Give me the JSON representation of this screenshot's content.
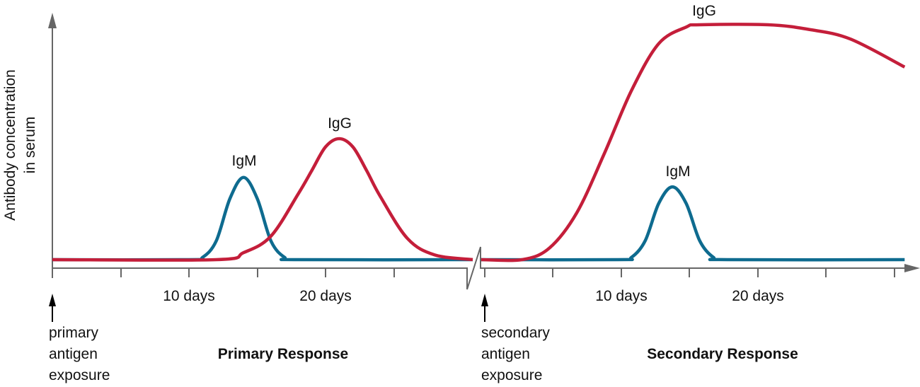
{
  "chart_data": {
    "type": "line",
    "ylabel": [
      "Antibody concentration",
      "in serum"
    ],
    "colors": {
      "IgG": "#c41e3a",
      "IgM": "#0e6b8f",
      "axis": "#666666"
    },
    "grid": false,
    "panels": [
      {
        "title": "Primary Response",
        "arrow_label": [
          "primary",
          "antigen",
          "exposure"
        ],
        "tick_labels": [
          {
            "day": 10,
            "text": "10 days"
          },
          {
            "day": 20,
            "text": "20 days"
          }
        ],
        "series": [
          {
            "name": "IgM",
            "points": [
              [
                0,
                0
              ],
              [
                10,
                0
              ],
              [
                11,
                1
              ],
              [
                12,
                8
              ],
              [
                13,
                26
              ],
              [
                14,
                35
              ],
              [
                15,
                26
              ],
              [
                16,
                8
              ],
              [
                17,
                1
              ],
              [
                18,
                0
              ],
              [
                30,
                0
              ]
            ]
          },
          {
            "name": "IgG",
            "points": [
              [
                0,
                0
              ],
              [
                12,
                0
              ],
              [
                14,
                3
              ],
              [
                16,
                10
              ],
              [
                18,
                28
              ],
              [
                19,
                38
              ],
              [
                20,
                48
              ],
              [
                21,
                51.5
              ],
              [
                22,
                48
              ],
              [
                23,
                38
              ],
              [
                24,
                27
              ],
              [
                26,
                9
              ],
              [
                28,
                2
              ],
              [
                30,
                0
              ]
            ]
          }
        ]
      },
      {
        "title": "Secondary Response",
        "arrow_label": [
          "secondary",
          "antigen",
          "exposure"
        ],
        "tick_labels": [
          {
            "day": 10,
            "text": "10 days"
          },
          {
            "day": 20,
            "text": "20 days"
          }
        ],
        "series": [
          {
            "name": "IgM",
            "points": [
              [
                0,
                0
              ],
              [
                10,
                0
              ],
              [
                11,
                1
              ],
              [
                12,
                8
              ],
              [
                13,
                24
              ],
              [
                14,
                31
              ],
              [
                15,
                24
              ],
              [
                16,
                8
              ],
              [
                17,
                1
              ],
              [
                18,
                0
              ],
              [
                31,
                0
              ]
            ]
          },
          {
            "name": "IgG",
            "points": [
              [
                0,
                0
              ],
              [
                3,
                0
              ],
              [
                5,
                5
              ],
              [
                7,
                20
              ],
              [
                9,
                45
              ],
              [
                11,
                72
              ],
              [
                13,
                92
              ],
              [
                15,
                99
              ],
              [
                16,
                100
              ],
              [
                21,
                100
              ],
              [
                24,
                98
              ],
              [
                27,
                94
              ],
              [
                31,
                82
              ]
            ]
          }
        ]
      }
    ]
  }
}
